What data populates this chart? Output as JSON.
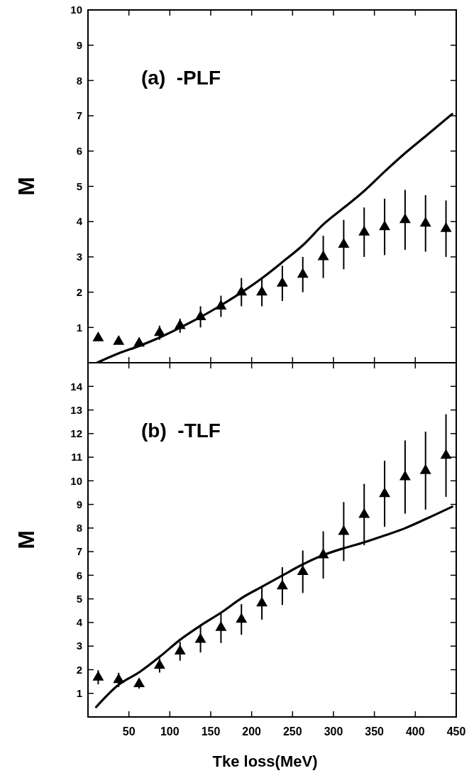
{
  "chart_data": [
    {
      "type": "scatter",
      "title": "(a)  -PLF",
      "ylabel": "M",
      "xlim": [
        0,
        450
      ],
      "xticks": [
        50,
        100,
        150,
        200,
        250,
        300,
        350,
        400,
        450
      ],
      "ylim": [
        0,
        10
      ],
      "yticks": [
        1,
        2,
        3,
        4,
        5,
        6,
        7,
        8,
        9,
        10
      ],
      "tick_labels": "y",
      "series": [
        {
          "color": "#000000",
          "marker": "triangle",
          "x": [
            12.5,
            37.5,
            62.5,
            87.5,
            112.5,
            137.5,
            162.5,
            187.5,
            212.5,
            237.5,
            262.5,
            287.5,
            312.5,
            337.5,
            362.5,
            387.5,
            412.5,
            437.5
          ],
          "values": [
            0.7,
            0.6,
            0.55,
            0.85,
            1.05,
            1.3,
            1.6,
            2.0,
            2.0,
            2.25,
            2.5,
            3.0,
            3.35,
            3.7,
            3.85,
            4.05,
            3.95,
            3.8
          ],
          "errors": [
            null,
            null,
            null,
            0.2,
            0.2,
            0.3,
            0.3,
            0.4,
            0.4,
            0.5,
            0.5,
            0.6,
            0.7,
            0.7,
            0.8,
            0.85,
            0.8,
            0.8
          ]
        },
        {
          "type": "line",
          "color": "#000000",
          "x": [
            11,
            37,
            63,
            88,
            113,
            138,
            164,
            188,
            214,
            238,
            263,
            288,
            313,
            338,
            364,
            388,
            414,
            445
          ],
          "values": [
            0,
            0.26,
            0.48,
            0.72,
            1.0,
            1.3,
            1.65,
            2.0,
            2.42,
            2.86,
            3.34,
            3.93,
            4.4,
            4.88,
            5.45,
            5.95,
            6.45,
            7.05
          ]
        }
      ]
    },
    {
      "type": "scatter",
      "title": "(b)  -TLF",
      "ylabel": "M",
      "xlabel": "Tke loss(MeV)",
      "xlim": [
        0,
        450
      ],
      "xticks": [
        50,
        100,
        150,
        200,
        250,
        300,
        350,
        400,
        450
      ],
      "ylim": [
        0,
        15
      ],
      "yticks": [
        1,
        2,
        3,
        4,
        5,
        6,
        7,
        8,
        9,
        10,
        11,
        12,
        13,
        14
      ],
      "series": [
        {
          "color": "#000000",
          "marker": "triangle",
          "x": [
            12.5,
            37.5,
            62.5,
            87.5,
            112.5,
            137.5,
            162.5,
            187.5,
            212.5,
            237.5,
            262.5,
            287.5,
            312.5,
            337.5,
            362.5,
            387.5,
            412.5,
            437.5
          ],
          "values": [
            1.68,
            1.57,
            1.4,
            2.18,
            2.78,
            3.28,
            3.78,
            4.13,
            4.82,
            5.54,
            6.15,
            6.86,
            7.85,
            8.57,
            9.45,
            10.16,
            10.43,
            11.07
          ],
          "errors": [
            0.3,
            0.3,
            0.2,
            0.3,
            0.4,
            0.55,
            0.65,
            0.65,
            0.7,
            0.8,
            0.9,
            1.0,
            1.25,
            1.3,
            1.4,
            1.55,
            1.65,
            1.75
          ]
        },
        {
          "type": "line",
          "color": "#000000",
          "x": [
            10,
            37,
            63,
            88,
            113,
            138,
            164,
            188,
            214,
            238,
            263,
            288,
            313,
            338,
            364,
            388,
            414,
            445
          ],
          "values": [
            0.42,
            1.35,
            1.9,
            2.56,
            3.28,
            3.88,
            4.45,
            5.04,
            5.54,
            6.0,
            6.47,
            6.86,
            7.15,
            7.4,
            7.7,
            8.0,
            8.4,
            8.9
          ]
        }
      ]
    }
  ]
}
